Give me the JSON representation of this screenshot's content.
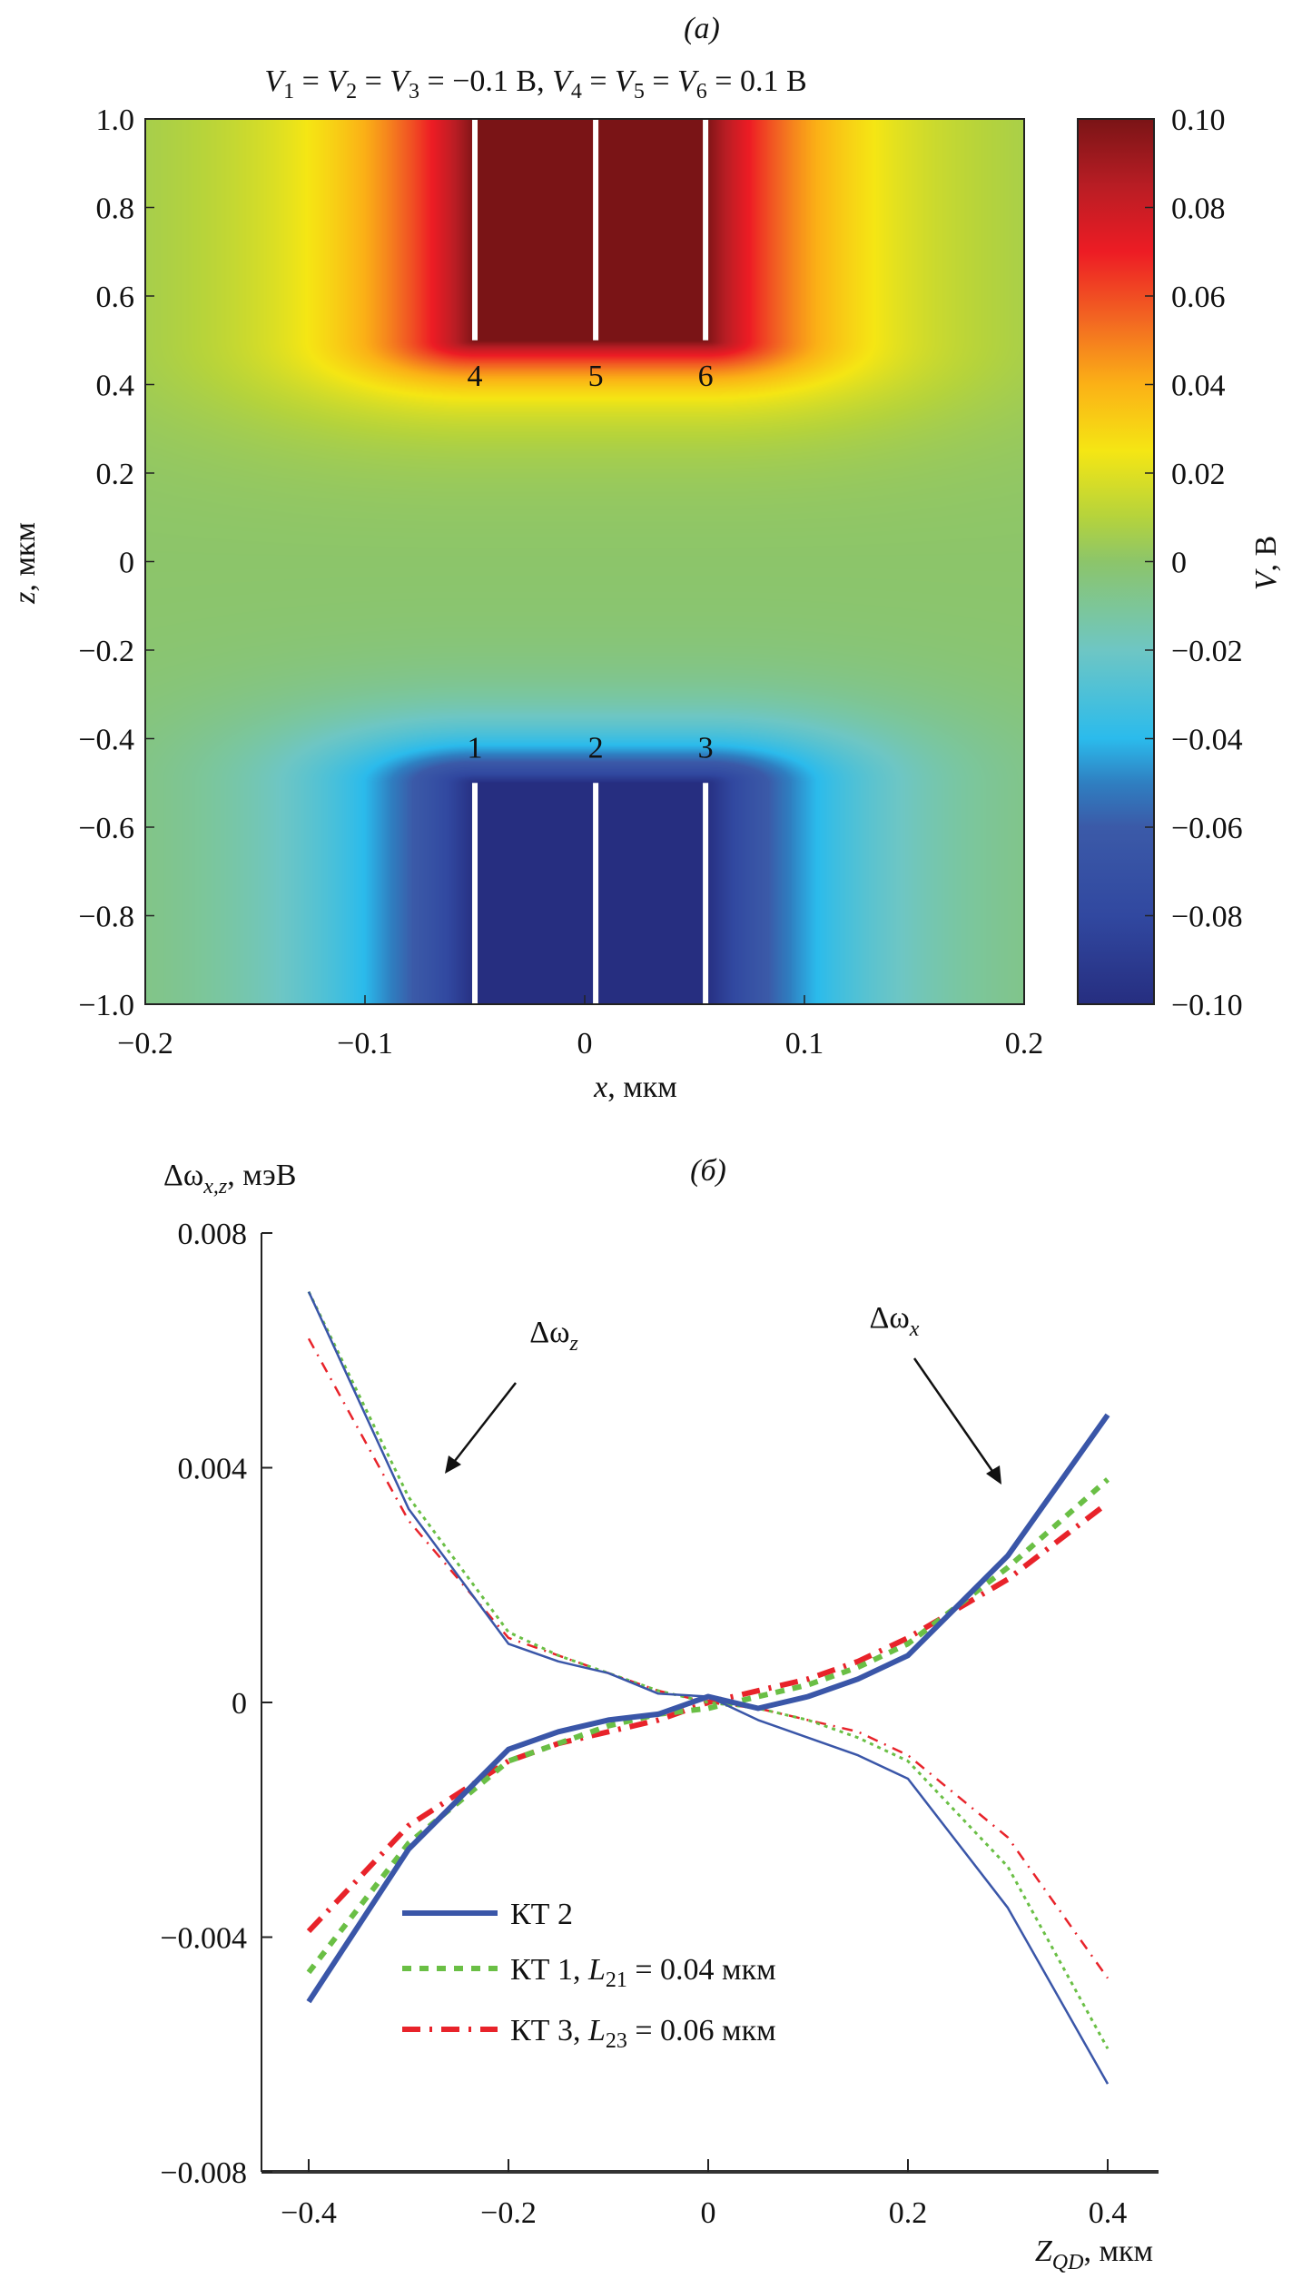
{
  "chart_data": [
    {
      "type": "heatmap",
      "panel_label": "(a)",
      "title_parts": [
        "V",
        "1",
        " = ",
        "V",
        "2",
        " = ",
        "V",
        "3",
        " = −0.1 В, ",
        "V",
        "4",
        " = ",
        "V",
        "5",
        " = ",
        "V",
        "6",
        " = 0.1 В"
      ],
      "xlabel": {
        "var": "x",
        "unit": ", мкм"
      },
      "ylabel": {
        "var": "z",
        "unit": ", мкм"
      },
      "xlim": [
        -0.2,
        0.2
      ],
      "ylim": [
        -1.0,
        1.0
      ],
      "xticks": [
        "−0.2",
        "−0.1",
        "0",
        "0.1",
        "0.2"
      ],
      "xtick_values": [
        -0.2,
        -0.1,
        0,
        0.1,
        0.2
      ],
      "yticks": [
        "1.0",
        "0.8",
        "0.6",
        "0.4",
        "0.2",
        "0",
        "−0.2",
        "−0.4",
        "−0.6",
        "−0.8",
        "−1.0"
      ],
      "ytick_values": [
        1.0,
        0.8,
        0.6,
        0.4,
        0.2,
        0,
        -0.2,
        -0.4,
        -0.6,
        -0.8,
        -1.0
      ],
      "colorbar": {
        "label": {
          "var": "V",
          "unit": ", В"
        },
        "range": [
          -0.1,
          0.1
        ],
        "ticks": [
          "0.10",
          "0.08",
          "0.06",
          "0.04",
          "0.02",
          "0",
          "−0.02",
          "−0.04",
          "−0.06",
          "−0.08",
          "−0.10"
        ],
        "tick_values": [
          0.1,
          0.08,
          0.06,
          0.04,
          0.02,
          0,
          -0.02,
          -0.04,
          -0.06,
          -0.08,
          -0.1
        ],
        "colormap": [
          [
            -0.1,
            "#262e80"
          ],
          [
            -0.08,
            "#3148a0"
          ],
          [
            -0.06,
            "#3b5aa8"
          ],
          [
            -0.05,
            "#2f7fc1"
          ],
          [
            -0.04,
            "#2bbbec"
          ],
          [
            -0.02,
            "#6ec6c4"
          ],
          [
            0,
            "#8cc56a"
          ],
          [
            0.01,
            "#b5d33c"
          ],
          [
            0.025,
            "#f5e614"
          ],
          [
            0.04,
            "#fbb116"
          ],
          [
            0.055,
            "#f26522"
          ],
          [
            0.07,
            "#ed1c24"
          ],
          [
            0.085,
            "#b81d24"
          ],
          [
            0.1,
            "#7a1416"
          ]
        ]
      },
      "electrodes": [
        {
          "label": "4",
          "x": -0.05,
          "z_range": [
            0.5,
            1.0
          ],
          "V": 0.1
        },
        {
          "label": "5",
          "x": 0.005,
          "z_range": [
            0.5,
            1.0
          ],
          "V": 0.1
        },
        {
          "label": "6",
          "x": 0.055,
          "z_range": [
            0.5,
            1.0
          ],
          "V": 0.1
        },
        {
          "label": "1",
          "x": -0.05,
          "z_range": [
            -1.0,
            -0.5
          ],
          "V": -0.1
        },
        {
          "label": "2",
          "x": 0.005,
          "z_range": [
            -1.0,
            -0.5
          ],
          "V": -0.1
        },
        {
          "label": "3",
          "x": 0.055,
          "z_range": [
            -1.0,
            -0.5
          ],
          "V": -0.1
        }
      ]
    },
    {
      "type": "line",
      "panel_label": "(б)",
      "ylabel": {
        "main": "Δω",
        "sub": "x,z",
        "unit": ", мэВ"
      },
      "xlabel": {
        "main": "Z",
        "sub": "QD",
        "unit": ", мкм"
      },
      "xlim": [
        -0.445,
        0.445
      ],
      "ylim": [
        -0.008,
        0.008
      ],
      "xticks": [
        "−0.4",
        "−0.2",
        "0",
        "0.2",
        "0.4"
      ],
      "xtick_values": [
        -0.4,
        -0.2,
        0,
        0.2,
        0.4
      ],
      "yticks": [
        "0.008",
        "0.004",
        "0",
        "−0.004",
        "−0.008"
      ],
      "ytick_values": [
        0.008,
        0.004,
        0,
        -0.004,
        -0.008
      ],
      "annotations": [
        {
          "main": "Δω",
          "sub": "z"
        },
        {
          "main": "Δω",
          "sub": "x"
        }
      ],
      "x": [
        -0.4,
        -0.3,
        -0.2,
        -0.15,
        -0.1,
        -0.05,
        0,
        0.05,
        0.1,
        0.15,
        0.2,
        0.3,
        0.4
      ],
      "series": [
        {
          "name": "КТ 2",
          "legend": {
            "main": "КТ 2"
          },
          "color": "#3a56a8",
          "style": "solid",
          "x_component": [
            -0.0051,
            -0.0025,
            -0.0008,
            -0.0005,
            -0.0003,
            -0.0002,
            0.0001,
            -0.0001,
            0.0001,
            0.0004,
            0.0008,
            0.0025,
            0.0049
          ],
          "z_component": [
            0.007,
            0.0033,
            0.001,
            0.0007,
            0.0005,
            0.00015,
            0.0001,
            -0.0003,
            -0.0006,
            -0.0009,
            -0.0013,
            -0.0035,
            -0.0065
          ]
        },
        {
          "name": "КТ 1, L21 = 0.04 мкм",
          "legend": {
            "main": "КТ 1, ",
            "var": "L",
            "sub": "21",
            "rest": " = 0.04 мкм"
          },
          "color": "#6abf45",
          "style": "dotted",
          "x_component": [
            -0.0046,
            -0.0024,
            -0.001,
            -0.0007,
            -0.0004,
            -0.0002,
            -0.0001,
            0.0001,
            0.0003,
            0.0006,
            0.001,
            0.0023,
            0.0038
          ],
          "z_component": [
            0.007,
            0.0035,
            0.0012,
            0.0008,
            0.0005,
            0.0002,
            0.0,
            -0.0001,
            -0.0003,
            -0.0006,
            -0.001,
            -0.0028,
            -0.0059
          ]
        },
        {
          "name": "КТ 3, L23 = 0.06 мкм",
          "legend": {
            "main": "КТ 3, ",
            "var": "L",
            "sub": "23",
            "rest": " = 0.06 мкм"
          },
          "color": "#e8232a",
          "style": "dash-dot",
          "x_component": [
            -0.0039,
            -0.0021,
            -0.001,
            -0.0007,
            -0.0005,
            -0.0003,
            0.0,
            0.0002,
            0.0004,
            0.0007,
            0.0011,
            0.0021,
            0.0034
          ],
          "z_component": [
            0.0062,
            0.0031,
            0.0011,
            0.0008,
            0.0005,
            0.0002,
            0.0,
            -0.0001,
            -0.0003,
            -0.0005,
            -0.0009,
            -0.0023,
            -0.0047
          ]
        }
      ]
    }
  ]
}
